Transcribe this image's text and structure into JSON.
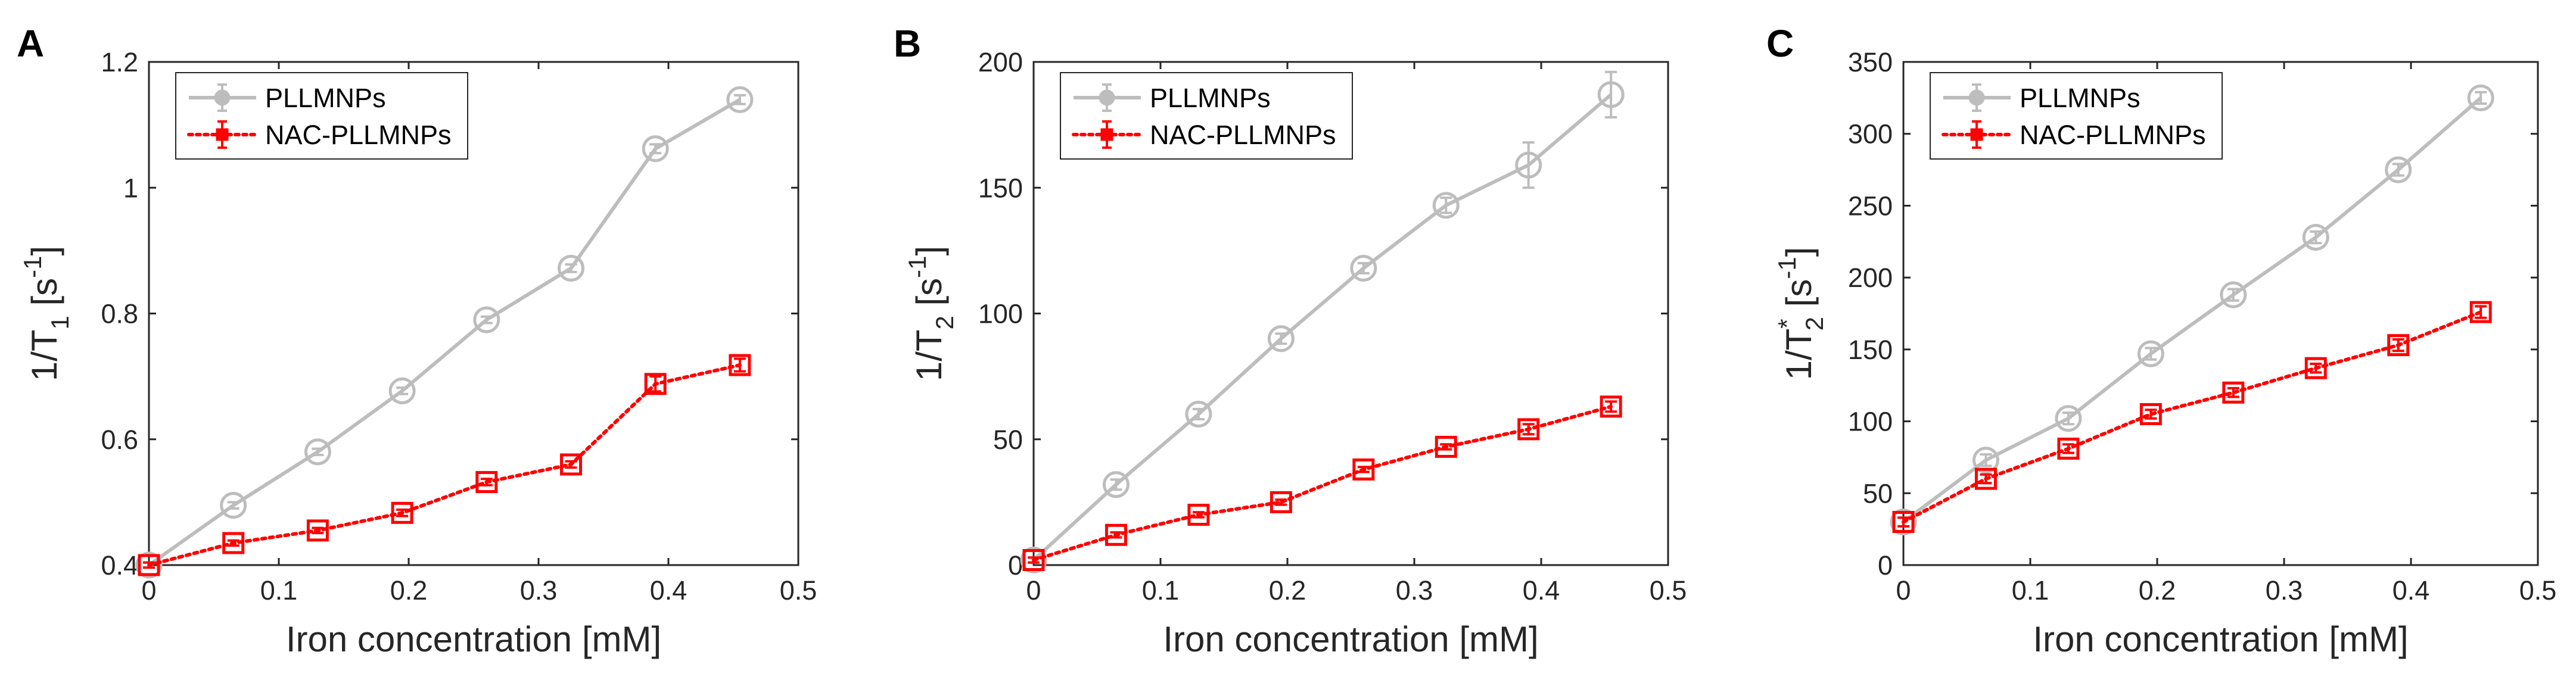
{
  "chart_data": [
    {
      "panel": "A",
      "type": "line",
      "xlabel": "Iron concentration [mM]",
      "ylabel": {
        "base": "1/T",
        "sub": "1",
        "sup": "",
        "unit_open": " [s",
        "unit_sup": "-1",
        "unit_close": "]"
      },
      "xlim": [
        0,
        0.5
      ],
      "ylim": [
        0.4,
        1.2
      ],
      "xticks": [
        "0",
        "0.1",
        "0.2",
        "0.3",
        "0.4",
        "0.5"
      ],
      "yticks": [
        "0.4",
        "0.6",
        "0.8",
        "1",
        "1.2"
      ],
      "x": [
        0,
        0.065,
        0.13,
        0.195,
        0.26,
        0.325,
        0.39,
        0.455
      ],
      "series": [
        {
          "name": "PLLMNPs",
          "color": "#bdbdbd",
          "marker": "circle",
          "line": "solid",
          "values": [
            0.4,
            0.495,
            0.58,
            0.677,
            0.79,
            0.872,
            1.062,
            1.14
          ],
          "errors": [
            0.004,
            0.005,
            0.005,
            0.005,
            0.005,
            0.006,
            0.007,
            0.007
          ]
        },
        {
          "name": "NAC-PLLMNPs",
          "color": "#ff0000",
          "marker": "square",
          "line": "dotted",
          "values": [
            0.4,
            0.435,
            0.455,
            0.483,
            0.532,
            0.56,
            0.688,
            0.718
          ],
          "errors": [
            0.004,
            0.004,
            0.004,
            0.005,
            0.005,
            0.005,
            0.012,
            0.01
          ]
        }
      ],
      "legend": "top-left",
      "grid": false
    },
    {
      "panel": "B",
      "type": "line",
      "xlabel": "Iron concentration [mM]",
      "ylabel": {
        "base": "1/T",
        "sub": "2",
        "sup": "",
        "unit_open": " [s",
        "unit_sup": "-1",
        "unit_close": "]"
      },
      "xlim": [
        0,
        0.5
      ],
      "ylim": [
        0,
        200
      ],
      "xticks": [
        "0",
        "0.1",
        "0.2",
        "0.3",
        "0.4",
        "0.5"
      ],
      "yticks": [
        "0",
        "50",
        "100",
        "150",
        "200"
      ],
      "x": [
        0,
        0.065,
        0.13,
        0.195,
        0.26,
        0.325,
        0.39,
        0.455
      ],
      "series": [
        {
          "name": "PLLMNPs",
          "color": "#bdbdbd",
          "marker": "circle",
          "line": "solid",
          "values": [
            2,
            32,
            60,
            90,
            118,
            143,
            159,
            187
          ],
          "errors": [
            1,
            2,
            2,
            2,
            2,
            3,
            9,
            9
          ]
        },
        {
          "name": "NAC-PLLMNPs",
          "color": "#ff0000",
          "marker": "square",
          "line": "dotted",
          "values": [
            2,
            12,
            20,
            25,
            38,
            47,
            54,
            63
          ],
          "errors": [
            1,
            1,
            1,
            1,
            1,
            1,
            2,
            2
          ]
        }
      ],
      "legend": "top-left",
      "grid": false
    },
    {
      "panel": "C",
      "type": "line",
      "xlabel": "Iron concentration [mM]",
      "ylabel": {
        "base": "1/T",
        "sub": "2",
        "sup": "*",
        "unit_open": " [s",
        "unit_sup": "-1",
        "unit_close": "]"
      },
      "xlim": [
        0,
        0.5
      ],
      "ylim": [
        0,
        350
      ],
      "xticks": [
        "0",
        "0.1",
        "0.2",
        "0.3",
        "0.4",
        "0.5"
      ],
      "yticks": [
        "0",
        "50",
        "100",
        "150",
        "200",
        "250",
        "300",
        "350"
      ],
      "x": [
        0,
        0.065,
        0.13,
        0.195,
        0.26,
        0.325,
        0.39,
        0.455
      ],
      "series": [
        {
          "name": "PLLMNPs",
          "color": "#bdbdbd",
          "marker": "circle",
          "line": "solid",
          "values": [
            30,
            73,
            102,
            147,
            188,
            228,
            275,
            325
          ],
          "errors": [
            3,
            4,
            4,
            4,
            4,
            4,
            4,
            4
          ]
        },
        {
          "name": "NAC-PLLMNPs",
          "color": "#ff0000",
          "marker": "square",
          "line": "dotted",
          "values": [
            30,
            60,
            81,
            105,
            120,
            137,
            153,
            176
          ],
          "errors": [
            3,
            3,
            3,
            3,
            3,
            3,
            4,
            4
          ]
        }
      ],
      "legend": "top-left",
      "grid": false
    }
  ]
}
